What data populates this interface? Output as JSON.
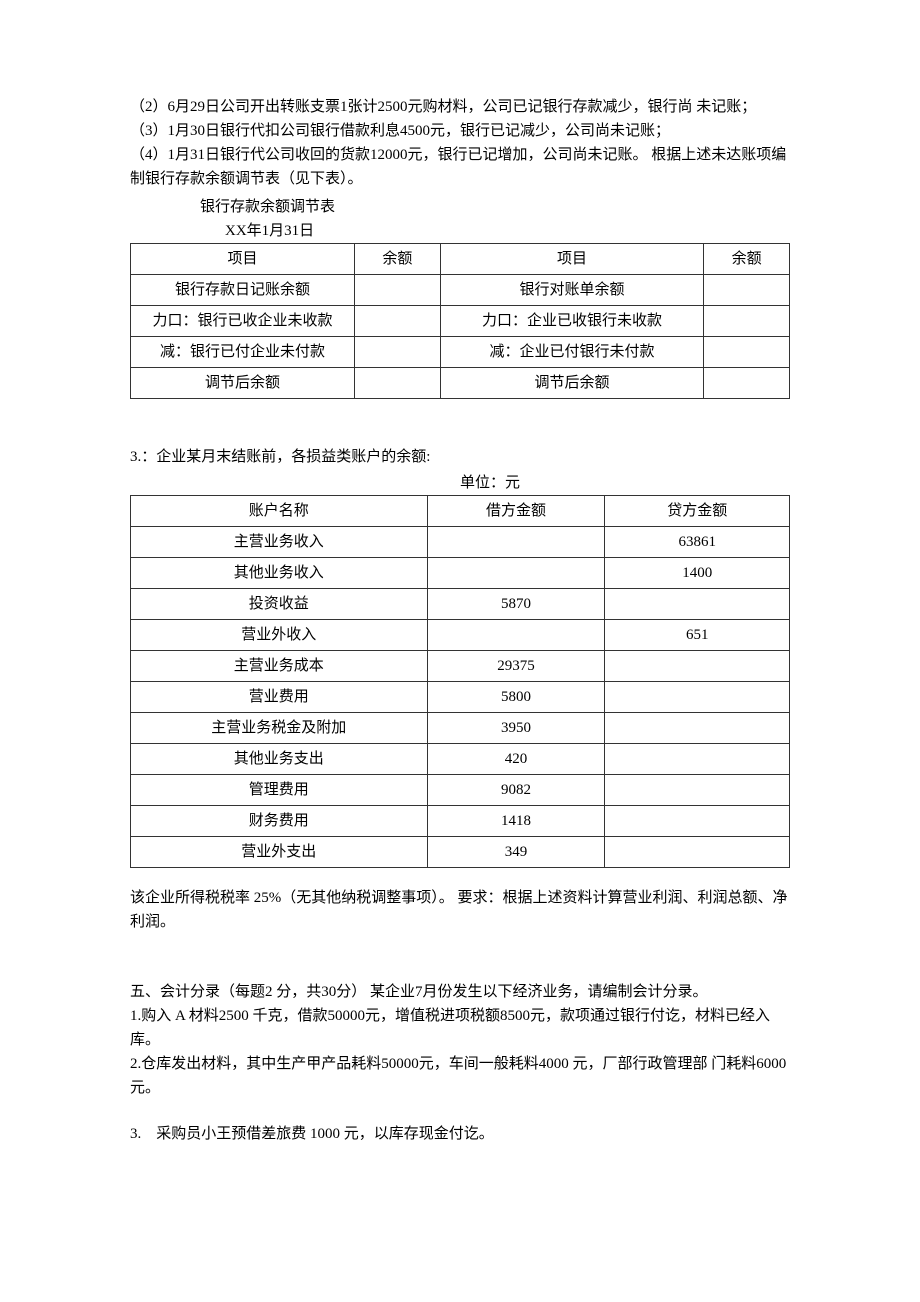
{
  "intro": {
    "line2": "（2）6月29日公司开出转账支票1张计2500元购材料，公司已记银行存款减少，银行尚 未记账；",
    "line3": "（3）1月30日银行代扣公司银行借款利息4500元，银行已记减少，公司尚未记账；",
    "line4": "（4）1月31日银行代公司收回的货款12000元，银行已记增加，公司尚未记账。 根据上述未达账项编制银行存款余额调节表（见下表）。"
  },
  "table1": {
    "title": "银行存款余额调节表",
    "date": "XX年1月31日",
    "headers": {
      "item": "项目",
      "balance": "余额"
    },
    "rows": [
      {
        "left": "银行存款日记账余额",
        "lval": "",
        "right": "银行对账单余额",
        "rval": ""
      },
      {
        "left": "力口：银行已收企业未收款",
        "lval": "",
        "right": "力口：企业已收银行未收款",
        "rval": ""
      },
      {
        "left": "减：银行已付企业未付款",
        "lval": "",
        "right": "减：企业已付银行未付款",
        "rval": ""
      },
      {
        "left": "调节后余额",
        "lval": "",
        "right": "调节后余额",
        "rval": ""
      }
    ]
  },
  "section3": {
    "title": "3.：企业某月末结账前，各损益类账户的余额:",
    "unit": "单位：元",
    "headers": {
      "name": "账户名称",
      "debit": "借方金额",
      "credit": "贷方金额"
    },
    "rows": [
      {
        "name": "主营业务收入",
        "debit": "",
        "credit": "63861"
      },
      {
        "name": "其他业务收入",
        "debit": "",
        "credit": "1400"
      },
      {
        "name": "投资收益",
        "debit": "5870",
        "credit": ""
      },
      {
        "name": "营业外收入",
        "debit": "",
        "credit": "651"
      },
      {
        "name": "主营业务成本",
        "debit": "29375",
        "credit": ""
      },
      {
        "name": "营业费用",
        "debit": "5800",
        "credit": ""
      },
      {
        "name": "主营业务税金及附加",
        "debit": "3950",
        "credit": ""
      },
      {
        "name": "其他业务支出",
        "debit": "420",
        "credit": ""
      },
      {
        "name": "管理费用",
        "debit": "9082",
        "credit": ""
      },
      {
        "name": "财务费用",
        "debit": "1418",
        "credit": ""
      },
      {
        "name": "营业外支出",
        "debit": "349",
        "credit": ""
      }
    ],
    "after": "该企业所得税税率 25%（无其他纳税调整事项）。 要求：根据上述资料计算营业利润、利润总额、净利润。"
  },
  "section5": {
    "header": "五、会计分录（每题2 分，共30分） 某企业7月份发生以下经济业务，请编制会计分录。",
    "q1": "1.购入 A 材料2500 千克，借款50000元，增值税进项税额8500元，款项通过银行付讫，材料已经入库。",
    "q2": "2.仓库发出材料，其中生产甲产品耗料50000元，车间一般耗料4000 元，厂部行政管理部 门耗料6000 元。",
    "q3": "3.　采购员小王预借差旅费 1000 元，以库存现金付讫。"
  }
}
